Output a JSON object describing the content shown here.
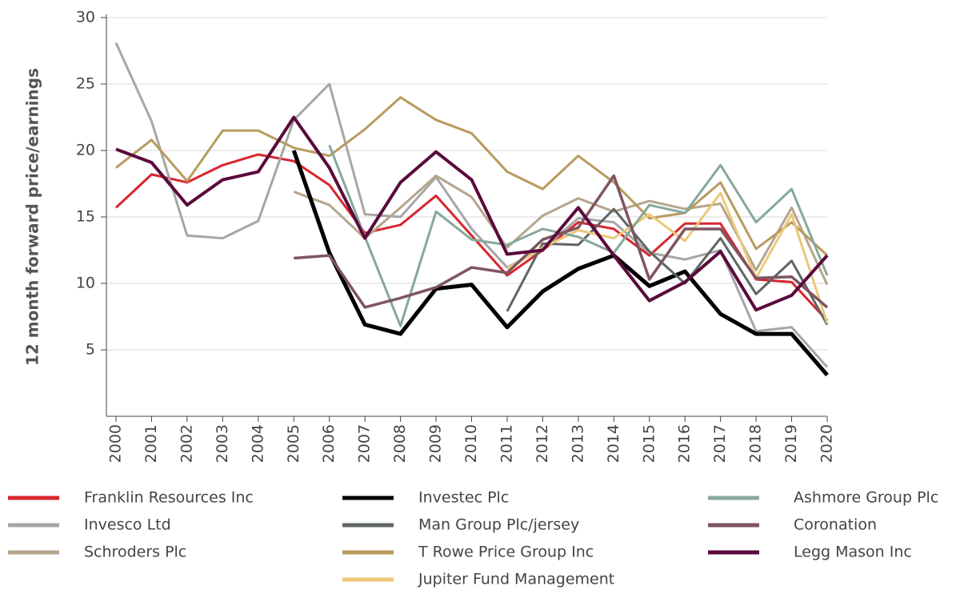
{
  "chart_data": {
    "type": "line",
    "y_label": "12 month forward price/earnings",
    "categories": [
      "2000",
      "2001",
      "2002",
      "2003",
      "2004",
      "2005",
      "2006",
      "2007",
      "2008",
      "2009",
      "2010",
      "2011",
      "2012",
      "2013",
      "2014",
      "2015",
      "2016",
      "2017",
      "2018",
      "2019",
      "2020"
    ],
    "ylim": [
      0,
      30
    ],
    "yticks": [
      5,
      10,
      15,
      20,
      25,
      30
    ],
    "grid": true,
    "series": [
      {
        "name": "Franklin Resources Inc",
        "color": "#d9262e",
        "values": [
          15.7,
          18.2,
          17.6,
          18.9,
          19.7,
          19.2,
          17.4,
          13.8,
          14.4,
          16.6,
          13.6,
          10.6,
          12.5,
          14.6,
          14.1,
          12.1,
          14.5,
          14.5,
          10.3,
          10.1,
          7.2
        ]
      },
      {
        "name": "Invesco Ltd",
        "color": "#a6a6a6",
        "values": [
          28.1,
          22.2,
          13.6,
          13.4,
          14.7,
          22.3,
          25.0,
          15.2,
          15.0,
          18.0,
          14.1,
          11.2,
          12.6,
          14.9,
          14.6,
          12.3,
          11.8,
          12.5,
          6.4,
          6.7,
          3.7
        ]
      },
      {
        "name": "Schroders Plc",
        "color": "#b5a58c",
        "values": [
          null,
          null,
          null,
          null,
          null,
          16.9,
          15.9,
          13.4,
          15.7,
          18.1,
          16.5,
          12.7,
          15.1,
          16.4,
          15.4,
          16.2,
          15.6,
          16.0,
          11.0,
          15.7,
          9.9
        ]
      },
      {
        "name": "Investec Plc",
        "color": "#000000",
        "values": [
          null,
          null,
          null,
          null,
          null,
          20.0,
          12.3,
          6.9,
          6.2,
          9.6,
          9.9,
          6.7,
          9.4,
          11.1,
          12.1,
          9.8,
          10.9,
          7.7,
          6.2,
          6.2,
          3.1
        ]
      },
      {
        "name": "Man Group Plc/jersey",
        "color": "#5f6664",
        "values": [
          null,
          null,
          null,
          null,
          null,
          null,
          null,
          null,
          null,
          null,
          null,
          7.9,
          13.0,
          12.9,
          15.6,
          12.4,
          10.0,
          13.4,
          9.2,
          11.7,
          6.9
        ]
      },
      {
        "name": "T Rowe Price Group Inc",
        "color": "#b89b5e",
        "values": [
          18.7,
          20.8,
          17.7,
          21.5,
          21.5,
          20.2,
          19.6,
          21.6,
          24.0,
          22.3,
          21.3,
          18.4,
          17.1,
          19.6,
          17.6,
          14.9,
          15.3,
          17.6,
          12.6,
          14.6,
          12.1
        ]
      },
      {
        "name": "Jupiter Fund Management",
        "color": "#ecc97a",
        "values": [
          null,
          null,
          null,
          null,
          null,
          null,
          null,
          null,
          null,
          null,
          null,
          11.1,
          12.7,
          14.0,
          13.4,
          15.2,
          13.2,
          16.8,
          10.4,
          15.2,
          7.0
        ]
      },
      {
        "name": "Ashmore Group Plc",
        "color": "#86a89a",
        "values": [
          null,
          null,
          null,
          null,
          null,
          null,
          20.4,
          13.5,
          6.8,
          15.4,
          13.3,
          12.9,
          14.1,
          13.5,
          12.3,
          15.9,
          15.3,
          18.9,
          14.6,
          17.1,
          10.6
        ]
      },
      {
        "name": "Coronation",
        "color": "#7d5560",
        "values": [
          null,
          null,
          null,
          null,
          null,
          11.9,
          12.1,
          8.2,
          8.9,
          9.7,
          11.2,
          10.8,
          13.3,
          14.2,
          18.1,
          10.3,
          14.1,
          14.1,
          10.4,
          10.5,
          8.2
        ]
      },
      {
        "name": "Legg Mason Inc",
        "color": "#5a0a3c",
        "values": [
          20.1,
          19.1,
          15.9,
          17.8,
          18.4,
          22.5,
          18.7,
          13.4,
          17.6,
          19.9,
          17.8,
          12.2,
          12.5,
          15.7,
          12.1,
          8.7,
          10.1,
          12.4,
          8.0,
          9.1,
          12.1
        ]
      }
    ]
  }
}
